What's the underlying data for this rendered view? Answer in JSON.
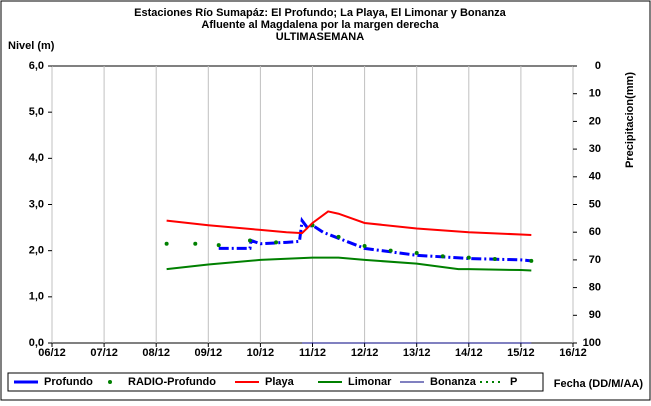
{
  "chart_data": {
    "type": "line",
    "title": [
      "Estaciones Río Sumapáz: El Profundo; La Playa, El Limonar y Bonanza",
      "Afluente al Magdalena por la margen derecha",
      "ULTIMASEMANA"
    ],
    "y_label": "Nivel (m)",
    "y2_label": "Precipitacion(mm)",
    "x_label": "Fecha (DD/M/AA)",
    "xlim": [
      6,
      16
    ],
    "xticks": [
      {
        "value": 6,
        "label": "06/12"
      },
      {
        "value": 7,
        "label": "07/12"
      },
      {
        "value": 8,
        "label": "08/12"
      },
      {
        "value": 9,
        "label": "09/12"
      },
      {
        "value": 10,
        "label": "10/12"
      },
      {
        "value": 11,
        "label": "11/12"
      },
      {
        "value": 12,
        "label": "12/12"
      },
      {
        "value": 13,
        "label": "13/12"
      },
      {
        "value": 14,
        "label": "14/12"
      },
      {
        "value": 15,
        "label": "15/12"
      },
      {
        "value": 16,
        "label": "16/12"
      }
    ],
    "ylim": [
      0,
      6
    ],
    "yticks": [
      {
        "value": 0,
        "label": "0,0"
      },
      {
        "value": 1,
        "label": "1,0"
      },
      {
        "value": 2,
        "label": "2,0"
      },
      {
        "value": 3,
        "label": "3,0"
      },
      {
        "value": 4,
        "label": "4,0"
      },
      {
        "value": 5,
        "label": "5,0"
      },
      {
        "value": 6,
        "label": "6,0"
      }
    ],
    "y2lim": [
      0,
      100
    ],
    "y2_inverted": true,
    "y2ticks": [
      0,
      10,
      20,
      30,
      40,
      50,
      60,
      70,
      80,
      90,
      100
    ],
    "grid": "x",
    "series": [
      {
        "name": "Profundo",
        "color": "#0000ff",
        "line_style": "dashdot",
        "width": 3,
        "x": [
          9.2,
          9.8,
          9.82,
          10.0,
          10.5,
          10.75,
          10.8,
          10.9,
          11.0,
          11.2,
          12.0,
          13.0,
          14.0,
          15.0,
          15.2
        ],
        "values": [
          2.05,
          2.05,
          2.22,
          2.15,
          2.18,
          2.2,
          2.65,
          2.5,
          2.55,
          2.4,
          2.05,
          1.9,
          1.83,
          1.8,
          1.78
        ]
      },
      {
        "name": "RADIO-Profundo",
        "color": "#008000",
        "line_style": "dots",
        "x": [
          8.2,
          8.75,
          9.2,
          9.8,
          10.3,
          11.0,
          11.5,
          12.0,
          12.5,
          13.0,
          13.5,
          14.0,
          14.5,
          15.2
        ],
        "values": [
          2.15,
          2.15,
          2.12,
          2.22,
          2.18,
          2.55,
          2.3,
          2.1,
          2.0,
          1.95,
          1.88,
          1.85,
          1.82,
          1.78
        ]
      },
      {
        "name": "Playa",
        "color": "#ff0000",
        "line_style": "solid",
        "width": 2,
        "x": [
          8.2,
          9.0,
          10.0,
          10.5,
          10.8,
          11.0,
          11.3,
          11.5,
          12.0,
          13.0,
          14.0,
          15.0,
          15.2
        ],
        "values": [
          2.65,
          2.55,
          2.45,
          2.4,
          2.38,
          2.6,
          2.85,
          2.8,
          2.6,
          2.48,
          2.4,
          2.35,
          2.34
        ]
      },
      {
        "name": "Limonar",
        "color": "#008000",
        "line_style": "solid",
        "width": 2,
        "x": [
          8.2,
          9.0,
          10.0,
          11.0,
          11.5,
          12.0,
          13.0,
          13.8,
          14.0,
          15.0,
          15.2
        ],
        "values": [
          1.6,
          1.7,
          1.8,
          1.85,
          1.85,
          1.8,
          1.72,
          1.6,
          1.6,
          1.58,
          1.57
        ]
      },
      {
        "name": "Bonanza",
        "color": "#000080",
        "line_style": "solid",
        "width": 1,
        "x": [
          10.8,
          15.2
        ],
        "values": [
          0,
          0
        ]
      },
      {
        "name": "P",
        "color": "#008000",
        "line_style": "dashdot",
        "width": 2,
        "axis": "y2",
        "x": [],
        "values": []
      }
    ]
  }
}
